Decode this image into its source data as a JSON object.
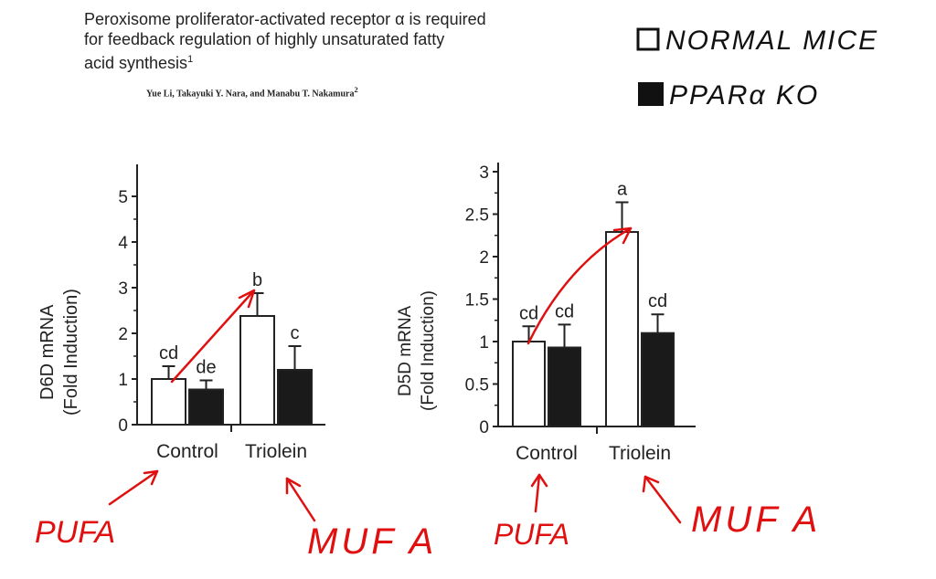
{
  "paper": {
    "title_line1": "Peroxisome proliferator-activated receptor α is required",
    "title_line2": "for feedback regulation of highly unsaturated fatty",
    "title_line3": "acid synthesis",
    "title_sup": "1",
    "authors": "Yue Li, Takayuki Y. Nara, and Manabu T. Nakamura",
    "authors_sup": "2"
  },
  "handwritten_legend": {
    "normal_label": "NORMAL MICE",
    "ko_label": "PPARα KO"
  },
  "annotations": {
    "left_control": "PUFA",
    "left_triolein": "MUF A",
    "right_control": "PUFA",
    "right_triolein": "MUF A"
  },
  "colors": {
    "ink": "#222222",
    "red": "#e01010",
    "open_bar": "#ffffff",
    "filled_bar": "#1a1a1a"
  },
  "chart_data": [
    {
      "type": "bar",
      "ylabel_line1": "D6D mRNA",
      "ylabel_line2": "(Fold Induction)",
      "categories": [
        "Control",
        "Triolein"
      ],
      "ylim": [
        0,
        5.5
      ],
      "yticks": [
        "0",
        "1",
        "2",
        "3",
        "4",
        "5"
      ],
      "series": [
        {
          "values": [
            1.0,
            2.38
          ],
          "errors": [
            0.28,
            0.5
          ]
        },
        {
          "values": [
            0.77,
            1.2
          ],
          "errors": [
            0.2,
            0.52
          ]
        }
      ],
      "letters": [
        [
          "cd",
          "de"
        ],
        [
          "b",
          "c"
        ]
      ]
    },
    {
      "type": "bar",
      "ylabel_line1": "D5D mRNA",
      "ylabel_line2": "(Fold Induction)",
      "categories": [
        "Control",
        "Triolein"
      ],
      "ylim": [
        0,
        3
      ],
      "yticks": [
        "0",
        "0.5",
        "1",
        "1.5",
        "2",
        "2.5",
        "3"
      ],
      "series": [
        {
          "values": [
            1.0,
            2.29
          ],
          "errors": [
            0.18,
            0.35
          ]
        },
        {
          "values": [
            0.93,
            1.1
          ],
          "errors": [
            0.27,
            0.22
          ]
        }
      ],
      "letters": [
        [
          "cd",
          "cd"
        ],
        [
          "a",
          "cd"
        ]
      ]
    }
  ]
}
